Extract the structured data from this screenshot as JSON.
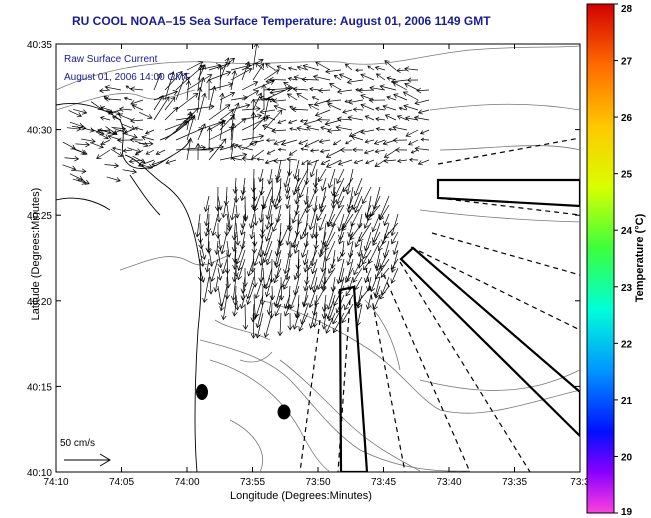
{
  "title": "RU COOL  NOAA–15  Sea Surface Temperature:  August 01, 2006 1149 GMT",
  "overlay": {
    "line1": "Raw Surface Current",
    "line2": "August 01, 2006 14:00 GMT"
  },
  "scale_label": "50 cm/s",
  "axes": {
    "x_title": "Longitude (Degrees:Minutes)",
    "y_title": "Latitude (Degrees:Minutes)",
    "x_ticks": [
      "74:10",
      "74:05",
      "74:00",
      "73:55",
      "73:50",
      "73:45",
      "73:40",
      "73:35",
      "73:3"
    ],
    "y_ticks": [
      "40:35",
      "40:30",
      "40:25",
      "40:20",
      "40:15",
      "40:10"
    ]
  },
  "colorbar": {
    "title": "Temperature (°C)",
    "ticks": [
      "28",
      "27",
      "26",
      "25",
      "24",
      "23",
      "22",
      "21",
      "20",
      "19"
    ],
    "stops": [
      "#e70000",
      "#ff7a00",
      "#ffd400",
      "#c8ff00",
      "#00ff4a",
      "#00f5ff",
      "#0090ff",
      "#0019ff",
      "#9b00ff",
      "#ff3ad3"
    ]
  },
  "chart_data": {
    "type": "map",
    "lon_range": [
      "74:10",
      "73:3"
    ],
    "lat_range": [
      "40:10",
      "40:35"
    ],
    "temperature_range_c": [
      19,
      28
    ],
    "current_vectors": "raw surface current field over New York Bight apex"
  }
}
